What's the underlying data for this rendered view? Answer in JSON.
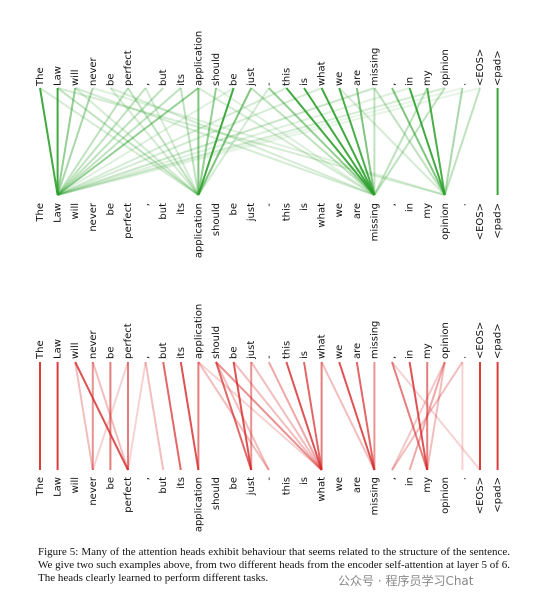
{
  "figure": {
    "tokens": [
      "The",
      "Law",
      "will",
      "never",
      "be",
      "perfect",
      ",",
      "but",
      "its",
      "application",
      "should",
      "be",
      "just",
      "-",
      "this",
      "is",
      "what",
      "we",
      "are",
      "missing",
      ",",
      "in",
      "my",
      "opinion",
      ".",
      "<EOS>",
      "<pad>"
    ],
    "caption": "Figure 5: Many of the attention heads exhibit behaviour that seems related to the structure of the sentence. We give two such examples above, from two different heads from the encoder self-attention at layer 5 of 6. The heads clearly learned to perform different tasks.",
    "watermark": "公众号 · 程序员学习Chat"
  }
}
